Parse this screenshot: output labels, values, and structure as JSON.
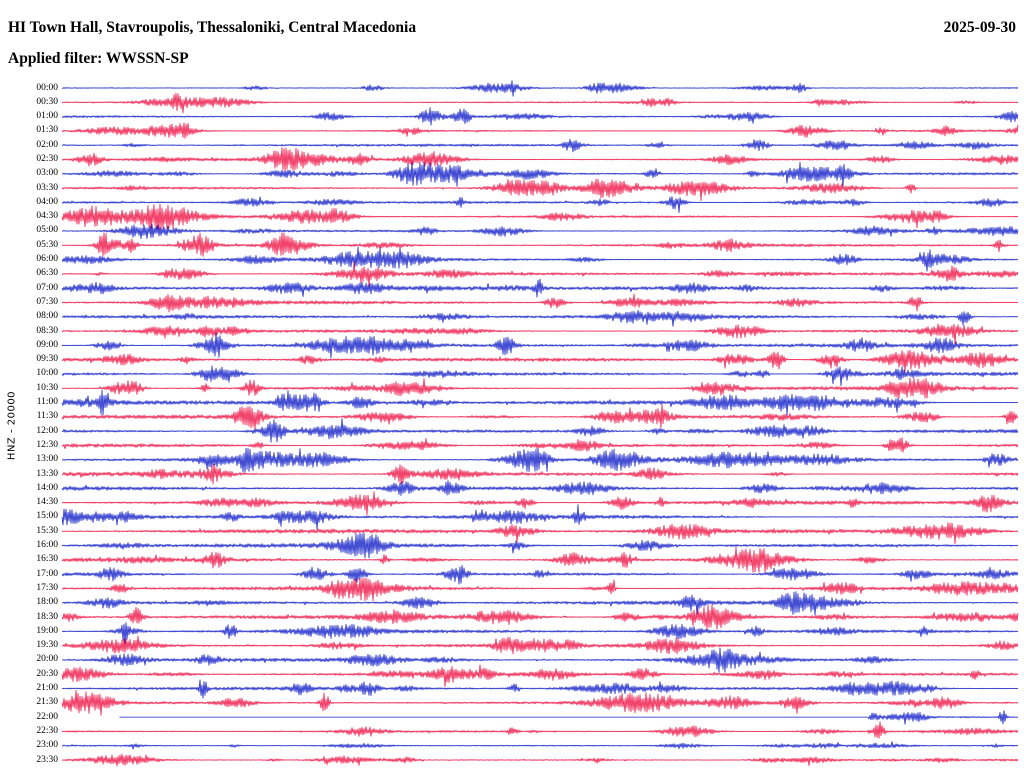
{
  "header": {
    "station_title": "HI Town Hall, Stavroupolis, Thessaloniki, Central Macedonia",
    "date": "2025-09-30",
    "filter_line": "Applied filter: WWSSN-SP"
  },
  "chart_data": {
    "type": "line",
    "subtype": "helicorder-seismogram",
    "title": "HI Town Hall, Stavroupolis, Thessaloniki, Central Macedonia",
    "date": "2025-09-30",
    "filter": "WWSSN-SP",
    "channel_scale_label": "HNZ - 20000",
    "channel": "HNZ",
    "amplitude_scale": 20000,
    "row_interval_minutes": 30,
    "x_axis": "time within each 30-minute row segment",
    "y_axis": "ground motion (filtered, WWSSN-SP), alternating row colors",
    "grid": false,
    "legend": "none",
    "trace_colors": {
      "blue": "#1522c8",
      "red": "#ee1748"
    },
    "text_color": "#000000",
    "background_color": "#ffffff",
    "data_gap": {
      "row": "22:00",
      "note": "blank then flat segment at start of row, noise resumes near end"
    },
    "rows": [
      {
        "time": "00:00",
        "color": "blue"
      },
      {
        "time": "00:30",
        "color": "red"
      },
      {
        "time": "01:00",
        "color": "blue"
      },
      {
        "time": "01:30",
        "color": "red"
      },
      {
        "time": "02:00",
        "color": "blue"
      },
      {
        "time": "02:30",
        "color": "red"
      },
      {
        "time": "03:00",
        "color": "blue"
      },
      {
        "time": "03:30",
        "color": "red"
      },
      {
        "time": "04:00",
        "color": "blue"
      },
      {
        "time": "04:30",
        "color": "red"
      },
      {
        "time": "05:00",
        "color": "blue"
      },
      {
        "time": "05:30",
        "color": "red"
      },
      {
        "time": "06:00",
        "color": "blue"
      },
      {
        "time": "06:30",
        "color": "red"
      },
      {
        "time": "07:00",
        "color": "blue"
      },
      {
        "time": "07:30",
        "color": "red"
      },
      {
        "time": "08:00",
        "color": "blue"
      },
      {
        "time": "08:30",
        "color": "red"
      },
      {
        "time": "09:00",
        "color": "blue"
      },
      {
        "time": "09:30",
        "color": "red"
      },
      {
        "time": "10:00",
        "color": "blue"
      },
      {
        "time": "10:30",
        "color": "red"
      },
      {
        "time": "11:00",
        "color": "blue"
      },
      {
        "time": "11:30",
        "color": "red"
      },
      {
        "time": "12:00",
        "color": "blue"
      },
      {
        "time": "12:30",
        "color": "red"
      },
      {
        "time": "13:00",
        "color": "blue"
      },
      {
        "time": "13:30",
        "color": "red"
      },
      {
        "time": "14:00",
        "color": "blue"
      },
      {
        "time": "14:30",
        "color": "red"
      },
      {
        "time": "15:00",
        "color": "blue"
      },
      {
        "time": "15:30",
        "color": "red"
      },
      {
        "time": "16:00",
        "color": "blue"
      },
      {
        "time": "16:30",
        "color": "red"
      },
      {
        "time": "17:00",
        "color": "blue"
      },
      {
        "time": "17:30",
        "color": "red"
      },
      {
        "time": "18:00",
        "color": "blue"
      },
      {
        "time": "18:30",
        "color": "red"
      },
      {
        "time": "19:00",
        "color": "blue"
      },
      {
        "time": "19:30",
        "color": "red"
      },
      {
        "time": "20:00",
        "color": "blue"
      },
      {
        "time": "20:30",
        "color": "red"
      },
      {
        "time": "21:00",
        "color": "blue"
      },
      {
        "time": "21:30",
        "color": "red"
      },
      {
        "time": "22:00",
        "color": "blue",
        "gap": {
          "blank_frac": 0.06,
          "flat_frac": 0.843
        }
      },
      {
        "time": "22:30",
        "color": "red"
      },
      {
        "time": "23:00",
        "color": "blue"
      },
      {
        "time": "23:30",
        "color": "red"
      }
    ]
  }
}
